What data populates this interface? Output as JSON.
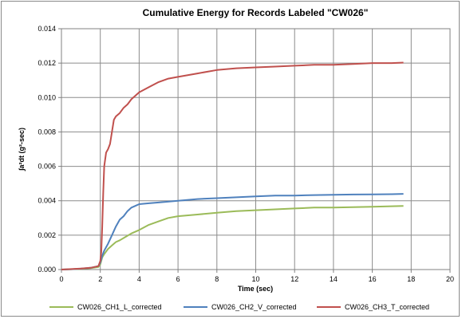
{
  "chart_data": {
    "type": "line",
    "title": "Cumulative Energy for Records Labeled \"CW026\"",
    "xlabel": "Time (sec)",
    "ylabel": "∫a²dt (g²-sec)",
    "xlim": [
      0,
      20
    ],
    "ylim": [
      0,
      0.014
    ],
    "x_ticks": [
      "0",
      "2",
      "4",
      "6",
      "8",
      "10",
      "12",
      "14",
      "16",
      "18",
      "20"
    ],
    "y_ticks": [
      "0.000",
      "0.002",
      "0.004",
      "0.006",
      "0.008",
      "0.010",
      "0.012",
      "0.014"
    ],
    "grid": true,
    "legend_position": "bottom",
    "series": [
      {
        "name": "CW026_CH1_L_corrected",
        "color": "#9bbb59",
        "points": [
          [
            0,
            0
          ],
          [
            0.5,
            2e-05
          ],
          [
            1.0,
            4e-05
          ],
          [
            1.5,
            8e-05
          ],
          [
            1.9,
            0.00015
          ],
          [
            2.0,
            0.0003
          ],
          [
            2.1,
            0.0007
          ],
          [
            2.2,
            0.0009
          ],
          [
            2.4,
            0.0012
          ],
          [
            2.6,
            0.0014
          ],
          [
            2.8,
            0.0016
          ],
          [
            3.0,
            0.0017
          ],
          [
            3.3,
            0.0019
          ],
          [
            3.6,
            0.0021
          ],
          [
            4.0,
            0.0023
          ],
          [
            4.5,
            0.0026
          ],
          [
            5.0,
            0.0028
          ],
          [
            5.5,
            0.003
          ],
          [
            6.0,
            0.0031
          ],
          [
            7.0,
            0.0032
          ],
          [
            8.0,
            0.0033
          ],
          [
            9.0,
            0.0034
          ],
          [
            10.0,
            0.00345
          ],
          [
            11.0,
            0.0035
          ],
          [
            12.0,
            0.00355
          ],
          [
            13.0,
            0.0036
          ],
          [
            14.0,
            0.0036
          ],
          [
            15.0,
            0.00363
          ],
          [
            16.0,
            0.00365
          ],
          [
            17.0,
            0.00368
          ],
          [
            17.6,
            0.0037
          ]
        ]
      },
      {
        "name": "CW026_CH2_V_corrected",
        "color": "#4f81bd",
        "points": [
          [
            0,
            0
          ],
          [
            0.5,
            2e-05
          ],
          [
            1.0,
            5e-05
          ],
          [
            1.5,
            0.0001
          ],
          [
            1.9,
            0.0002
          ],
          [
            2.0,
            0.0004
          ],
          [
            2.1,
            0.0008
          ],
          [
            2.2,
            0.0011
          ],
          [
            2.4,
            0.0015
          ],
          [
            2.6,
            0.002
          ],
          [
            2.8,
            0.0025
          ],
          [
            3.0,
            0.0029
          ],
          [
            3.2,
            0.0031
          ],
          [
            3.4,
            0.0034
          ],
          [
            3.6,
            0.0036
          ],
          [
            3.8,
            0.0037
          ],
          [
            4.0,
            0.0038
          ],
          [
            4.5,
            0.00385
          ],
          [
            5.0,
            0.0039
          ],
          [
            6.0,
            0.004
          ],
          [
            7.0,
            0.0041
          ],
          [
            8.0,
            0.00415
          ],
          [
            9.0,
            0.0042
          ],
          [
            10.0,
            0.00425
          ],
          [
            11.0,
            0.0043
          ],
          [
            12.0,
            0.0043
          ],
          [
            13.0,
            0.00433
          ],
          [
            14.0,
            0.00435
          ],
          [
            15.0,
            0.00436
          ],
          [
            16.0,
            0.00437
          ],
          [
            17.0,
            0.00438
          ],
          [
            17.6,
            0.0044
          ]
        ]
      },
      {
        "name": "CW026_CH3_T_corrected",
        "color": "#c0504d",
        "points": [
          [
            0,
            0
          ],
          [
            0.5,
            3e-05
          ],
          [
            1.0,
            6e-05
          ],
          [
            1.5,
            0.0001
          ],
          [
            1.9,
            0.0002
          ],
          [
            2.0,
            0.0005
          ],
          [
            2.05,
            0.001
          ],
          [
            2.1,
            0.0025
          ],
          [
            2.15,
            0.0045
          ],
          [
            2.2,
            0.006
          ],
          [
            2.3,
            0.0068
          ],
          [
            2.4,
            0.007
          ],
          [
            2.5,
            0.0073
          ],
          [
            2.6,
            0.008
          ],
          [
            2.7,
            0.0087
          ],
          [
            2.8,
            0.0089
          ],
          [
            3.0,
            0.0091
          ],
          [
            3.2,
            0.0094
          ],
          [
            3.4,
            0.0096
          ],
          [
            3.6,
            0.0099
          ],
          [
            3.8,
            0.0101
          ],
          [
            4.0,
            0.0103
          ],
          [
            4.5,
            0.0106
          ],
          [
            5.0,
            0.0109
          ],
          [
            5.5,
            0.0111
          ],
          [
            6.0,
            0.0112
          ],
          [
            7.0,
            0.0114
          ],
          [
            8.0,
            0.0116
          ],
          [
            9.0,
            0.0117
          ],
          [
            10.0,
            0.01175
          ],
          [
            11.0,
            0.0118
          ],
          [
            12.0,
            0.01185
          ],
          [
            13.0,
            0.0119
          ],
          [
            14.0,
            0.0119
          ],
          [
            15.0,
            0.01195
          ],
          [
            16.0,
            0.012
          ],
          [
            17.0,
            0.012
          ],
          [
            17.6,
            0.01203
          ]
        ]
      }
    ]
  }
}
